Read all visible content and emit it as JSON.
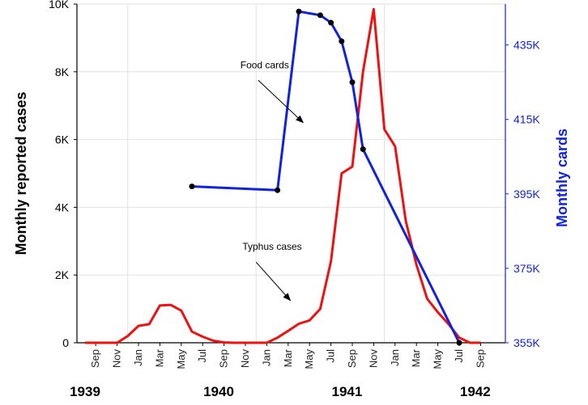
{
  "chart_data": {
    "type": "line",
    "title": "",
    "ylabel": "Monthly reported cases",
    "y2label": "Monthly cards",
    "ylim": [
      0,
      10000
    ],
    "y2lim": [
      355000,
      446000
    ],
    "yticks": [
      0,
      2000,
      4000,
      6000,
      8000,
      10000
    ],
    "ytick_labels": [
      "0",
      "2K",
      "4K",
      "6K",
      "8K",
      "10K"
    ],
    "y2ticks": [
      355000,
      375000,
      395000,
      415000,
      435000
    ],
    "y2tick_labels": [
      "355K",
      "375K",
      "395K",
      "415K",
      "435K"
    ],
    "month_labels": [
      {
        "m": 1,
        "label": "Sep"
      },
      {
        "m": 3,
        "label": "Nov"
      },
      {
        "m": 5,
        "label": "Jan"
      },
      {
        "m": 7,
        "label": "Mar"
      },
      {
        "m": 9,
        "label": "May"
      },
      {
        "m": 11,
        "label": "Jul"
      },
      {
        "m": 13,
        "label": "Sep"
      },
      {
        "m": 15,
        "label": "Nov"
      },
      {
        "m": 17,
        "label": "Jan"
      },
      {
        "m": 19,
        "label": "Mar"
      },
      {
        "m": 21,
        "label": "May"
      },
      {
        "m": 23,
        "label": "Jul"
      },
      {
        "m": 25,
        "label": "Sep"
      },
      {
        "m": 27,
        "label": "Nov"
      },
      {
        "m": 29,
        "label": "Jan"
      },
      {
        "m": 31,
        "label": "Mar"
      },
      {
        "m": 33,
        "label": "May"
      },
      {
        "m": 35,
        "label": "Jul"
      },
      {
        "m": 37,
        "label": "Sep"
      }
    ],
    "year_labels": [
      {
        "m": 0,
        "label": "1939"
      },
      {
        "m": 12.5,
        "label": "1940"
      },
      {
        "m": 24.5,
        "label": "1941"
      },
      {
        "m": 36.5,
        "label": "1942"
      }
    ],
    "grid": true,
    "series": [
      {
        "name": "Typhus cases",
        "color": "#ee1111",
        "axis": "left",
        "points": [
          [
            0,
            0
          ],
          [
            1,
            0
          ],
          [
            2,
            0
          ],
          [
            3,
            0
          ],
          [
            4,
            200
          ],
          [
            5,
            500
          ],
          [
            6,
            550
          ],
          [
            7,
            1100
          ],
          [
            8,
            1120
          ],
          [
            9,
            950
          ],
          [
            10,
            330
          ],
          [
            11,
            180
          ],
          [
            12,
            60
          ],
          [
            13,
            10
          ],
          [
            14,
            0
          ],
          [
            15,
            0
          ],
          [
            16,
            0
          ],
          [
            17,
            0
          ],
          [
            18,
            150
          ],
          [
            19,
            350
          ],
          [
            20,
            560
          ],
          [
            21,
            660
          ],
          [
            22,
            1000
          ],
          [
            23,
            2400
          ],
          [
            24,
            5000
          ],
          [
            25,
            5200
          ],
          [
            26,
            8000
          ],
          [
            27,
            9850
          ],
          [
            28,
            6300
          ],
          [
            29,
            5800
          ],
          [
            30,
            3600
          ],
          [
            31,
            2300
          ],
          [
            32,
            1300
          ],
          [
            33,
            900
          ],
          [
            34,
            550
          ],
          [
            35,
            150
          ],
          [
            36,
            0
          ],
          [
            37,
            0
          ]
        ]
      },
      {
        "name": "Food cards",
        "color": "#1122dd",
        "axis": "right",
        "points": [
          [
            10,
            397000
          ],
          [
            18,
            396000
          ],
          [
            20,
            444000
          ],
          [
            22,
            443000
          ],
          [
            23,
            441000
          ],
          [
            24,
            436000
          ],
          [
            25,
            425000
          ],
          [
            26,
            407000
          ],
          [
            35,
            355000
          ]
        ]
      }
    ],
    "annotations": [
      {
        "text": "Food cards",
        "text_at": [
          16.8,
          8100
        ],
        "arrow_from": [
          16.2,
          7750
        ],
        "arrow_to": [
          20.4,
          6500
        ]
      },
      {
        "text": "Typhus cases",
        "text_at": [
          17.5,
          2750
        ],
        "arrow_from": [
          16.0,
          2380
        ],
        "arrow_to": [
          19.2,
          1250
        ]
      }
    ]
  }
}
